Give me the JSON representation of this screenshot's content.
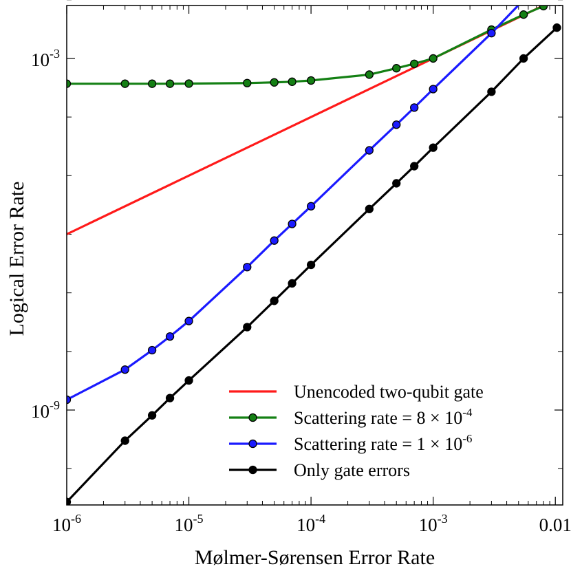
{
  "chart_data": {
    "type": "line",
    "title": "",
    "xlabel": "Mølmer-Sørensen Error Rate",
    "ylabel": "Logical Error Rate",
    "xscale": "log",
    "yscale": "log",
    "xlim": [
      1e-06,
      0.0115
    ],
    "ylim": [
      2.4e-11,
      0.008
    ],
    "grid": false,
    "legend_position": "lower-right",
    "x_ticks": [
      {
        "value": 1e-06,
        "base": "10",
        "exp": "-6"
      },
      {
        "value": 1e-05,
        "base": "10",
        "exp": "-5"
      },
      {
        "value": 0.0001,
        "base": "10",
        "exp": "-4"
      },
      {
        "value": 0.001,
        "base": "10",
        "exp": "-3"
      },
      {
        "value": 0.01,
        "base": "0.01",
        "exp": ""
      }
    ],
    "y_ticks": [
      {
        "value": 0.001,
        "base": "10",
        "exp": "-3"
      },
      {
        "value": 1e-09,
        "base": "10",
        "exp": "-9"
      }
    ],
    "y_minor_ticks": [
      1e-10,
      1e-08,
      1e-07,
      1e-06,
      1e-05,
      0.0001,
      0.01
    ],
    "series": [
      {
        "name": "Unencoded two-qubit gate",
        "color": "#ff1a1a",
        "markers": false,
        "x": [
          1e-06,
          0.0115
        ],
        "y": [
          1e-06,
          0.0115
        ]
      },
      {
        "name": "Scattering rate = 8 × 10^-4",
        "legend_base": "Scattering rate = 8 × 10",
        "legend_exp": "-4",
        "color": "#148014",
        "markers": true,
        "x": [
          1e-06,
          3e-06,
          5e-06,
          7e-06,
          1e-05,
          3e-05,
          5e-05,
          7e-05,
          0.0001,
          0.0003,
          0.0005,
          0.0007,
          0.001,
          0.003,
          0.0055,
          0.008,
          0.0108
        ],
        "y": [
          0.00037,
          0.00037,
          0.00037,
          0.00037,
          0.000372,
          0.00038,
          0.00039,
          0.0004,
          0.00042,
          0.00053,
          0.00068,
          0.00081,
          0.001,
          0.0031,
          0.0056,
          0.0078,
          0.0092
        ]
      },
      {
        "name": "Scattering rate = 1 × 10^-6",
        "legend_base": "Scattering rate = 1 × 10",
        "legend_exp": "-6",
        "color": "#1a1aff",
        "markers": true,
        "x": [
          1e-06,
          3e-06,
          5e-06,
          7e-06,
          1e-05,
          3e-05,
          5e-05,
          7e-05,
          0.0001,
          0.0003,
          0.0005,
          0.0007,
          0.001,
          0.003,
          0.0055,
          0.0103
        ],
        "y": [
          1.5e-09,
          4.9e-09,
          1.05e-08,
          1.8e-08,
          3.3e-08,
          2.75e-07,
          7.8e-07,
          1.5e-06,
          3e-06,
          2.7e-05,
          7.4e-05,
          0.000145,
          0.0003,
          0.0027,
          0.01,
          0.0335
        ]
      },
      {
        "name": "Only gate errors",
        "color": "#000000",
        "markers": true,
        "x": [
          1e-06,
          3e-06,
          5e-06,
          7e-06,
          1e-05,
          3e-05,
          5e-05,
          7e-05,
          0.0001,
          0.0003,
          0.0005,
          0.0007,
          0.001,
          0.003,
          0.0055,
          0.0103
        ],
        "y": [
          2.7e-11,
          3e-10,
          8.1e-10,
          1.6e-09,
          3.2e-09,
          2.6e-08,
          7.3e-08,
          1.45e-07,
          3e-07,
          2.7e-06,
          7.4e-06,
          1.45e-05,
          3e-05,
          0.00027,
          0.001,
          0.00335
        ]
      }
    ]
  }
}
